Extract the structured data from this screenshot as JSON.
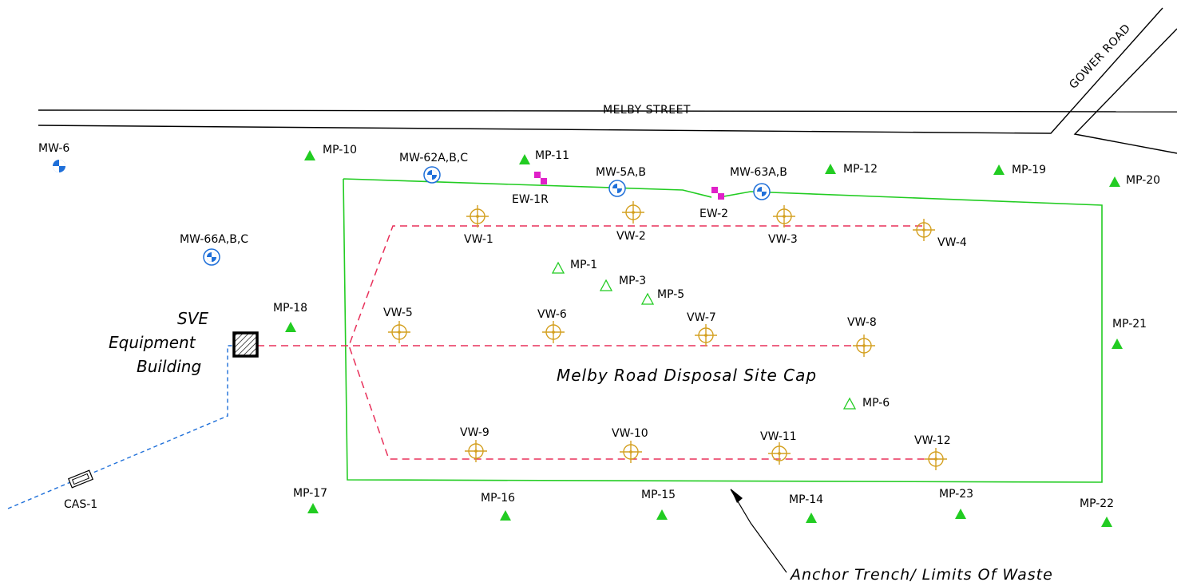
{
  "roads": {
    "melby_street": "MELBY STREET",
    "gower_road": "GOWER ROAD"
  },
  "site": {
    "cap_label": "Melby Road Disposal Site Cap",
    "building_line1": "SVE",
    "building_line2": "Equipment",
    "building_line3": "Building",
    "anchor_label": "Anchor Trench/ Limits Of Waste"
  },
  "monitoring_wells": [
    "MW-6",
    "MW-62A,B,C",
    "MW-5A,B",
    "MW-63A,B",
    "MW-66A,B,C"
  ],
  "extraction_wells": [
    "EW-1R",
    "EW-2"
  ],
  "vent_wells": [
    "VW-1",
    "VW-2",
    "VW-3",
    "VW-4",
    "VW-5",
    "VW-6",
    "VW-7",
    "VW-8",
    "VW-9",
    "VW-10",
    "VW-11",
    "VW-12"
  ],
  "monitoring_points_existing": [
    "MP-10",
    "MP-11",
    "MP-12",
    "MP-19",
    "MP-20",
    "MP-18",
    "MP-21",
    "MP-17",
    "MP-16",
    "MP-15",
    "MP-14",
    "MP-23",
    "MP-22"
  ],
  "monitoring_points_interior": [
    "MP-1",
    "MP-3",
    "MP-5",
    "MP-6"
  ],
  "cas": "CAS-1",
  "colors": {
    "cap_outline": "#22cc22",
    "existing_mp": "#22cc22",
    "vent_well": "#d4a020",
    "trench": "#e8305a",
    "monitoring_well": "#1e6fd9",
    "extraction_well": "#e020c8",
    "cas_line": "#1e6fd9"
  },
  "icons": {
    "monitoring_well": "well-quadrant-icon",
    "extraction_well": "checker-square-icon",
    "vent_well": "crosshair-circle-icon",
    "monitoring_point": "triangle-icon"
  }
}
